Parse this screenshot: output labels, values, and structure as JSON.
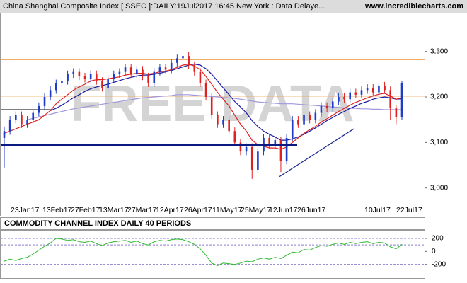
{
  "chart_data": [
    {
      "type": "candlestick",
      "title": "China Shanghai Composite Index [ SSEC ]:DAILY:19Jul2017 16:45 New York : Data Delaye...",
      "site": "www.incrediblecharts.com",
      "watermark": "FREE DATA",
      "up_color": "#1f3cc8",
      "down_color": "#e0201f",
      "ylim": [
        2970,
        3385
      ],
      "yticks": [
        {
          "value": 3000,
          "label": "3,000"
        },
        {
          "value": 3100,
          "label": "3,100"
        },
        {
          "value": 3200,
          "label": "3,200"
        },
        {
          "value": 3300,
          "label": "3,300"
        }
      ],
      "xlabels": [
        "23Jan17",
        "13Feb17",
        "27Feb17",
        "13Mar17",
        "27Mar17",
        "12Apr17",
        "26Apr17",
        "11May17",
        "25May17",
        "12Jun17",
        "26Jun17",
        "10Jul17",
        "22Jul17"
      ],
      "candles": [
        [
          3110,
          3135,
          3045,
          3125
        ],
        [
          3125,
          3158,
          3117,
          3150
        ],
        [
          3150,
          3168,
          3142,
          3160
        ],
        [
          3160,
          3168,
          3132,
          3140
        ],
        [
          3140,
          3158,
          3132,
          3150
        ],
        [
          3150,
          3173,
          3142,
          3165
        ],
        [
          3165,
          3188,
          3157,
          3180
        ],
        [
          3180,
          3208,
          3172,
          3200
        ],
        [
          3200,
          3223,
          3192,
          3215
        ],
        [
          3215,
          3238,
          3207,
          3230
        ],
        [
          3230,
          3243,
          3222,
          3235
        ],
        [
          3235,
          3258,
          3227,
          3250
        ],
        [
          3250,
          3263,
          3242,
          3255
        ],
        [
          3255,
          3263,
          3237,
          3245
        ],
        [
          3245,
          3253,
          3232,
          3240
        ],
        [
          3240,
          3258,
          3232,
          3250
        ],
        [
          3250,
          3258,
          3227,
          3235
        ],
        [
          3235,
          3243,
          3212,
          3220
        ],
        [
          3220,
          3248,
          3212,
          3240
        ],
        [
          3240,
          3258,
          3232,
          3250
        ],
        [
          3250,
          3263,
          3242,
          3255
        ],
        [
          3255,
          3273,
          3247,
          3265
        ],
        [
          3265,
          3273,
          3242,
          3250
        ],
        [
          3250,
          3268,
          3242,
          3260
        ],
        [
          3260,
          3268,
          3237,
          3245
        ],
        [
          3245,
          3253,
          3222,
          3230
        ],
        [
          3230,
          3263,
          3222,
          3255
        ],
        [
          3255,
          3273,
          3247,
          3265
        ],
        [
          3265,
          3273,
          3252,
          3260
        ],
        [
          3260,
          3283,
          3252,
          3275
        ],
        [
          3275,
          3293,
          3267,
          3285
        ],
        [
          3285,
          3298,
          3277,
          3290
        ],
        [
          3290,
          3298,
          3262,
          3270
        ],
        [
          3270,
          3278,
          3247,
          3255
        ],
        [
          3255,
          3263,
          3222,
          3230
        ],
        [
          3230,
          3238,
          3192,
          3200
        ],
        [
          3200,
          3208,
          3152,
          3160
        ],
        [
          3160,
          3168,
          3132,
          3140
        ],
        [
          3140,
          3158,
          3132,
          3150
        ],
        [
          3150,
          3158,
          3117,
          3125
        ],
        [
          3125,
          3133,
          3092,
          3100
        ],
        [
          3100,
          3108,
          3072,
          3080
        ],
        [
          3080,
          3098,
          3072,
          3090
        ],
        [
          3090,
          3098,
          3020,
          3040
        ],
        [
          3040,
          3088,
          3032,
          3080
        ],
        [
          3080,
          3118,
          3072,
          3110
        ],
        [
          3110,
          3118,
          3087,
          3095
        ],
        [
          3095,
          3113,
          3087,
          3105
        ],
        [
          3105,
          3113,
          3035,
          3060
        ],
        [
          3060,
          3118,
          3052,
          3110
        ],
        [
          3110,
          3158,
          3102,
          3150
        ],
        [
          3150,
          3158,
          3132,
          3140
        ],
        [
          3140,
          3168,
          3132,
          3160
        ],
        [
          3160,
          3168,
          3142,
          3150
        ],
        [
          3150,
          3173,
          3142,
          3165
        ],
        [
          3165,
          3188,
          3157,
          3180
        ],
        [
          3180,
          3188,
          3167,
          3175
        ],
        [
          3175,
          3198,
          3167,
          3190
        ],
        [
          3190,
          3208,
          3182,
          3200
        ],
        [
          3200,
          3208,
          3187,
          3195
        ],
        [
          3195,
          3218,
          3187,
          3210
        ],
        [
          3210,
          3218,
          3197,
          3205
        ],
        [
          3205,
          3223,
          3197,
          3215
        ],
        [
          3215,
          3228,
          3207,
          3220
        ],
        [
          3220,
          3228,
          3202,
          3210
        ],
        [
          3210,
          3233,
          3202,
          3225
        ],
        [
          3225,
          3233,
          3207,
          3215
        ],
        [
          3215,
          3223,
          3150,
          3175
        ],
        [
          3175,
          3183,
          3140,
          3155
        ],
        [
          3155,
          3235,
          3150,
          3230
        ]
      ],
      "series": [
        {
          "color": "#e02020",
          "values": [
            3120,
            3125,
            3130,
            3135,
            3140,
            3145,
            3150,
            3160,
            3170,
            3185,
            3195,
            3205,
            3215,
            3222,
            3228,
            3235,
            3238,
            3238,
            3240,
            3242,
            3244,
            3248,
            3250,
            3252,
            3252,
            3250,
            3252,
            3255,
            3257,
            3260,
            3265,
            3270,
            3272,
            3268,
            3260,
            3245,
            3228,
            3210,
            3195,
            3180,
            3160,
            3140,
            3125,
            3105,
            3095,
            3092,
            3088,
            3088,
            3085,
            3090,
            3100,
            3110,
            3120,
            3128,
            3135,
            3145,
            3152,
            3160,
            3168,
            3175,
            3182,
            3188,
            3193,
            3198,
            3202,
            3206,
            3208,
            3202,
            3195,
            3198
          ]
        },
        {
          "color": "#1a1aa0",
          "values": [
            null,
            null,
            null,
            null,
            null,
            null,
            null,
            null,
            3170,
            3175,
            3182,
            3190,
            3198,
            3205,
            3212,
            3218,
            3222,
            3225,
            3228,
            3232,
            3236,
            3240,
            3243,
            3246,
            3248,
            3248,
            3250,
            3252,
            3255,
            3258,
            3262,
            3266,
            3270,
            3272,
            3270,
            3262,
            3250,
            3235,
            3220,
            3205,
            3190,
            3178,
            3165,
            3148,
            3135,
            3125,
            3118,
            3112,
            3105,
            3105,
            3108,
            3112,
            3118,
            3125,
            3132,
            3140,
            3148,
            3155,
            3162,
            3168,
            3175,
            3180,
            3186,
            3190,
            3195,
            3198,
            3200,
            3198,
            3195,
            3196
          ]
        },
        {
          "color": "#a098dc",
          "values": [
            null,
            null,
            null,
            null,
            3150,
            3153,
            3156,
            3159,
            3162,
            3165,
            3168,
            3171,
            3174,
            3176,
            3178,
            3180,
            3182,
            3184,
            3186,
            3188,
            3190,
            3192,
            3194,
            3196,
            3198,
            3199,
            3200,
            3201,
            3202,
            3203,
            3205,
            3205,
            3205,
            3204,
            3203,
            3202,
            3201,
            3200,
            3199,
            3198,
            3197,
            3195,
            3193,
            3191,
            3189,
            3188,
            3187,
            3186,
            3185,
            3185,
            3185,
            3184,
            3183,
            3182,
            3181,
            3180,
            3179,
            3178,
            3177,
            3176,
            3175,
            3175,
            3174,
            3174,
            3173,
            3173,
            3172,
            3172,
            3172,
            3172
          ]
        }
      ],
      "resistance_lines": [
        3282,
        3202
      ],
      "resistance_color": "#f0a050",
      "support_line": [
        3094,
        3094
      ],
      "support_color": "#0a1a80",
      "trend_line": [
        3025,
        3130
      ],
      "trend_color": "#1a2a90",
      "step_line": [
        3172,
        3172
      ],
      "step_color": "#000000"
    },
    {
      "type": "line",
      "title": "COMMODITY CHANNEL INDEX DAILY 40 PERIODS",
      "ylim": [
        -400,
        320
      ],
      "yticks": [
        -200,
        0,
        200
      ],
      "guides": [
        200,
        100,
        -100,
        -200
      ],
      "guide_color": "#8a7fd0",
      "series": [
        {
          "color": "#2db82d",
          "values": [
            -150,
            -120,
            -140,
            -110,
            -90,
            -40,
            20,
            80,
            130,
            200,
            190,
            170,
            180,
            150,
            140,
            160,
            120,
            90,
            130,
            150,
            160,
            170,
            140,
            160,
            120,
            100,
            150,
            170,
            160,
            180,
            190,
            180,
            150,
            110,
            40,
            -60,
            -180,
            -220,
            -180,
            -190,
            -200,
            -180,
            -150,
            -160,
            -120,
            -100,
            -120,
            -90,
            -110,
            -60,
            -10,
            -20,
            30,
            20,
            60,
            90,
            80,
            110,
            130,
            110,
            140,
            120,
            140,
            150,
            120,
            140,
            130,
            70,
            40,
            110
          ]
        }
      ]
    }
  ]
}
